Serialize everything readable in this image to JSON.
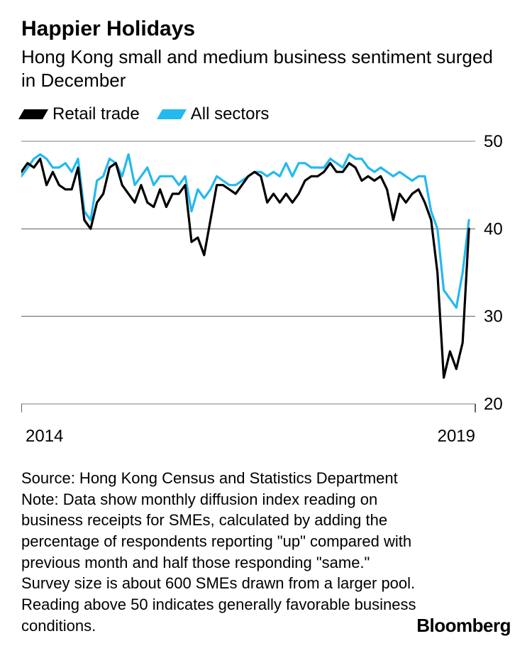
{
  "title": "Happier Holidays",
  "subtitle": "Hong Kong small and medium business sentiment surged in December",
  "legend": {
    "retail": {
      "label": "Retail trade",
      "color": "#000000"
    },
    "all": {
      "label": "All sectors",
      "color": "#24b9ef"
    }
  },
  "chart": {
    "type": "line",
    "ylim": [
      20,
      50
    ],
    "yticks": [
      20,
      30,
      40,
      50
    ],
    "xlim": [
      0,
      72
    ],
    "xticks": [
      {
        "pos": 0,
        "label": "2014"
      },
      {
        "pos": 72,
        "label": "2019"
      }
    ],
    "gridline_color": "#000000",
    "gridline_width": 0.6,
    "axis_color": "#000000",
    "background_color": "#ffffff",
    "line_width": 3.2,
    "tick_fontsize": 24,
    "series": {
      "retail": {
        "color": "#000000",
        "values": [
          46.5,
          47.5,
          47,
          48,
          45,
          46.5,
          45,
          44.5,
          44.5,
          47,
          41,
          40,
          43,
          44,
          47,
          47.5,
          45,
          44,
          43,
          45,
          43,
          42.5,
          44.5,
          42.5,
          44,
          44,
          45,
          38.5,
          39,
          37,
          41,
          45,
          45,
          44.5,
          44,
          45,
          46,
          46.5,
          46,
          43,
          44,
          43,
          44,
          43,
          44,
          45.5,
          46,
          46,
          46.5,
          47.5,
          46.5,
          46.5,
          47.5,
          47,
          45.5,
          46,
          45.5,
          46,
          44.5,
          41,
          44,
          43,
          44,
          44.5,
          43,
          41,
          35,
          23,
          26,
          24,
          27,
          40
        ]
      },
      "all": {
        "color": "#24b9ef",
        "values": [
          46,
          47,
          48,
          48.5,
          48,
          47,
          47,
          47.5,
          46.5,
          48,
          42,
          41,
          45.5,
          46,
          48,
          47.5,
          46,
          48.5,
          45,
          46,
          47,
          45,
          46,
          46,
          46,
          45,
          46,
          42,
          44.5,
          43.5,
          44.5,
          46,
          45.5,
          45,
          45,
          45.5,
          46,
          46.5,
          46.5,
          46,
          46.5,
          46,
          47.5,
          46,
          47.5,
          47.5,
          47,
          47,
          47,
          48,
          47.5,
          47,
          48.5,
          48,
          48,
          47,
          46.5,
          47,
          46.5,
          46,
          46.5,
          46,
          45.5,
          46,
          46,
          42,
          40,
          33,
          32,
          31,
          35,
          41
        ]
      }
    }
  },
  "source": "Source: Hong Kong Census and Statistics Department",
  "note": "Note: Data show monthly diffusion index reading on business receipts for SMEs, calculated by adding the percentage of respondents reporting \"up\" compared with previous month and half those responding \"same.\" Survey size is about 600 SMEs drawn from a larger pool. Reading above 50 indicates generally favorable business conditions.",
  "brand": "Bloomberg"
}
